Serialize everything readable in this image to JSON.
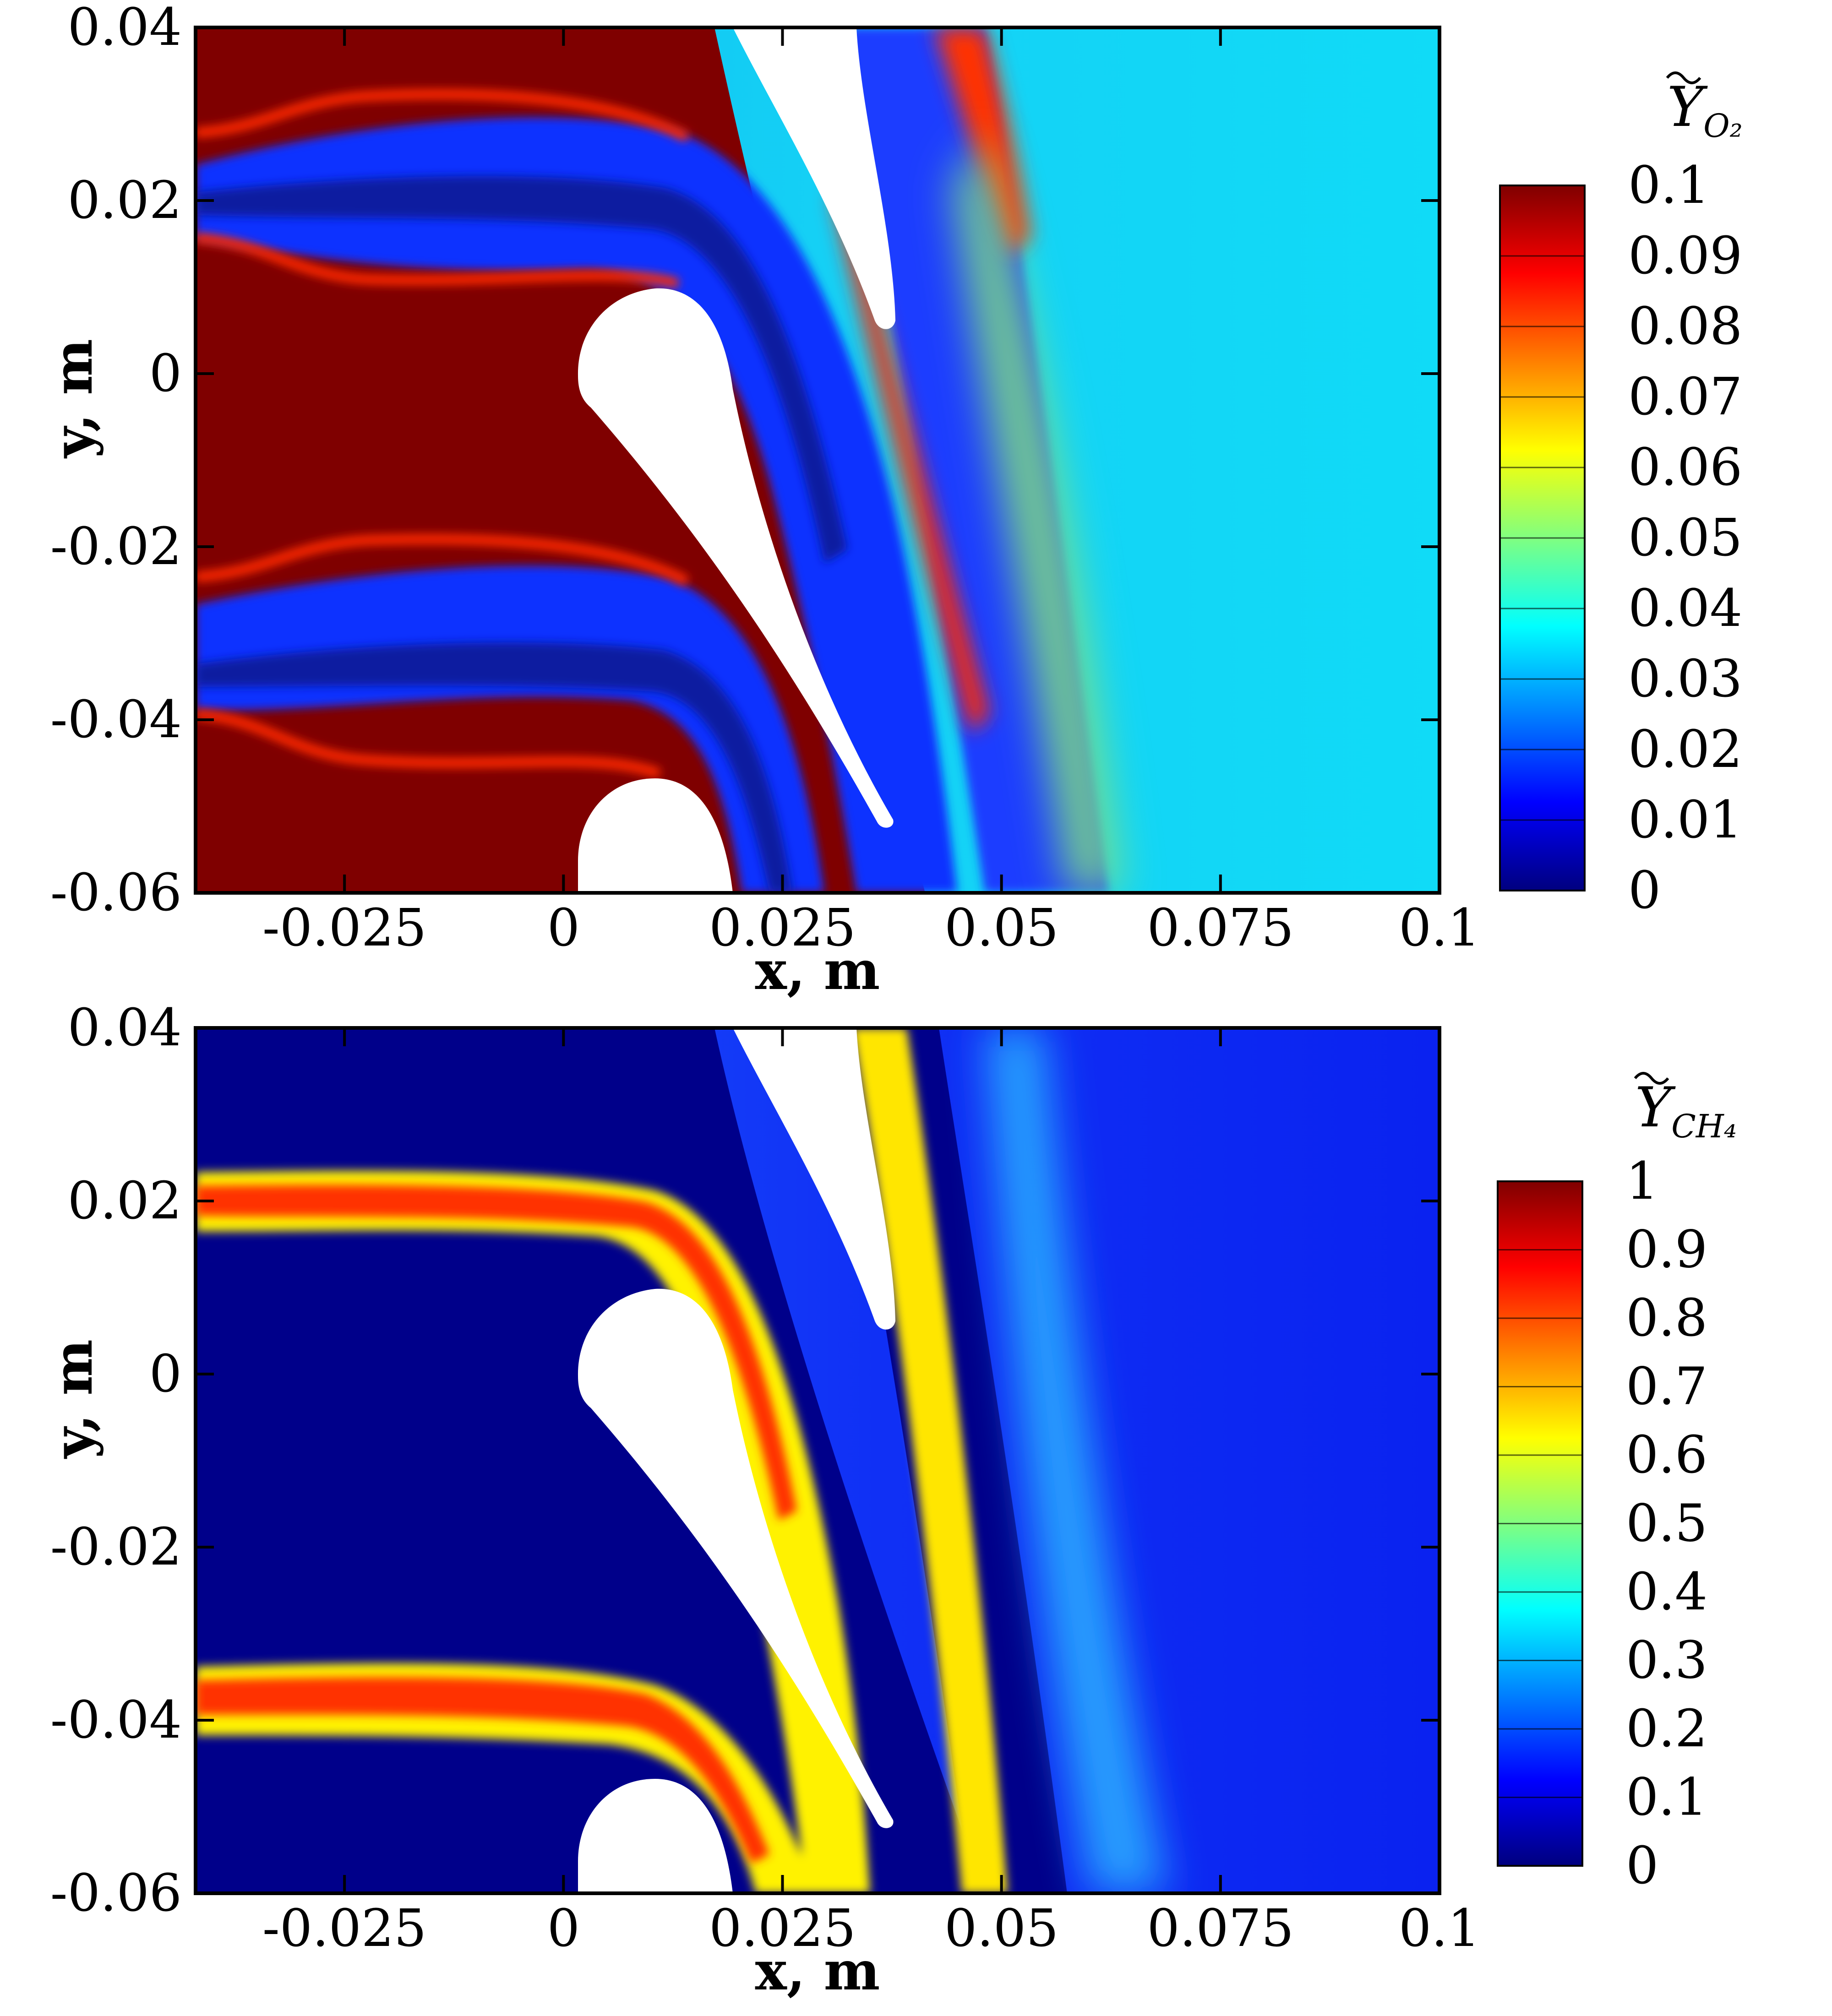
{
  "colormap": [
    "#00007f",
    "#0000ff",
    "#0080ff",
    "#00ffff",
    "#80ff80",
    "#ffff00",
    "#ff8000",
    "#ff0000",
    "#7f0000"
  ],
  "chart_data": [
    {
      "type": "heatmap",
      "title": "",
      "xlabel": "x, m",
      "ylabel": "y, m",
      "xlim": [
        -0.042,
        0.1
      ],
      "ylim": [
        -0.06,
        0.04
      ],
      "x_ticks": [
        "-0.025",
        "0",
        "0.025",
        "0.05",
        "0.075",
        "0.1"
      ],
      "y_ticks": [
        "0.04",
        "0.02",
        "0",
        "-0.02",
        "-0.04",
        "-0.06"
      ],
      "colorbar": {
        "title_main": "Y",
        "title_sub": "O₂",
        "min": 0,
        "max": 0.1,
        "ticks": [
          "0.1",
          "0.09",
          "0.08",
          "0.07",
          "0.06",
          "0.05",
          "0.04",
          "0.03",
          "0.02",
          "0.01",
          "0"
        ]
      },
      "field_summary": {
        "inlet_region": 0.1,
        "fuel_jet_core": 0.015,
        "jet_edges": 0.09,
        "outlet_region": 0.045
      }
    },
    {
      "type": "heatmap",
      "title": "",
      "xlabel": "x, m",
      "ylabel": "y, m",
      "xlim": [
        -0.042,
        0.1
      ],
      "ylim": [
        -0.06,
        0.04
      ],
      "x_ticks": [
        "-0.025",
        "0",
        "0.025",
        "0.05",
        "0.075",
        "0.1"
      ],
      "y_ticks": [
        "0.04",
        "0.02",
        "0",
        "-0.02",
        "-0.04",
        "-0.06"
      ],
      "colorbar": {
        "title_main": "Y",
        "title_sub": "CH₄",
        "min": 0,
        "max": 1,
        "ticks": [
          "1",
          "0.9",
          "0.8",
          "0.7",
          "0.6",
          "0.5",
          "0.4",
          "0.3",
          "0.2",
          "0.1",
          "0"
        ]
      },
      "field_summary": {
        "inlet_region": 0.0,
        "fuel_jet_core": 0.8,
        "wake_streak": 0.35,
        "outlet_region": 0.2
      }
    }
  ]
}
